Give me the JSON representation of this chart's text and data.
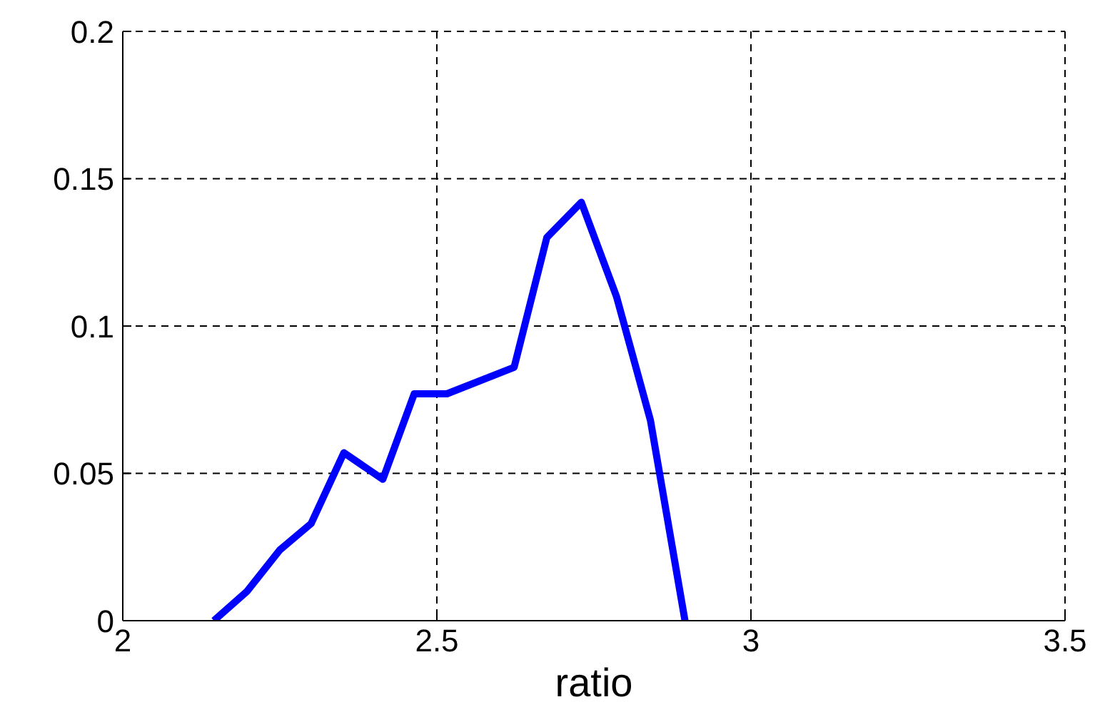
{
  "chart_data": {
    "type": "line",
    "xlabel": "ratio",
    "x": [
      2.145,
      2.198,
      2.25,
      2.3,
      2.352,
      2.414,
      2.464,
      2.516,
      2.623,
      2.675,
      2.73,
      2.786,
      2.84,
      2.895
    ],
    "series": [
      {
        "color": "#0000ff",
        "values": [
          0,
          0.01,
          0.024,
          0.033,
          0.057,
          0.048,
          0.077,
          0.077,
          0.086,
          0.13,
          0.142,
          0.11,
          0.068,
          0
        ]
      }
    ],
    "xlim": [
      2,
      3.5
    ],
    "xticks": [
      2,
      2.5,
      3,
      3.5
    ],
    "ylim": [
      0,
      0.2
    ],
    "yticks": [
      0,
      0.05,
      0.1,
      0.15,
      0.2
    ],
    "grid": true,
    "marker": "none",
    "line_style": "solid"
  }
}
